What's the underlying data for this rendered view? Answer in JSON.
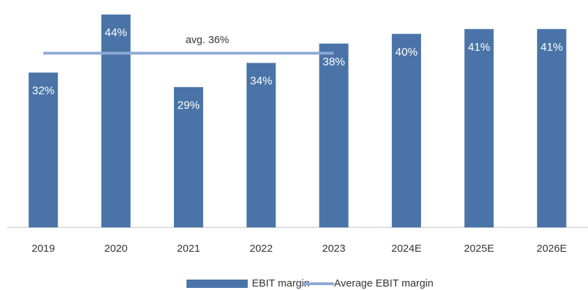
{
  "chart_data": {
    "type": "bar",
    "categories": [
      "2019",
      "2020",
      "2021",
      "2022",
      "2023",
      "2024E",
      "2025E",
      "2026E"
    ],
    "series": [
      {
        "name": "EBIT margin",
        "color": "#4a74a8",
        "values": [
          32,
          44,
          29,
          34,
          38,
          40,
          41,
          41
        ],
        "value_labels": [
          "32%",
          "44%",
          "29%",
          "34%",
          "38%",
          "40%",
          "41%",
          "41%"
        ]
      },
      {
        "name": "Average EBIT margin",
        "type": "line",
        "color": "#8eaad6",
        "values": [
          36,
          36,
          36,
          36,
          36,
          null,
          null,
          null
        ]
      }
    ],
    "annotations": [
      "avg. 36%"
    ],
    "ylim": [
      0,
      47
    ],
    "legend": "bottom"
  }
}
